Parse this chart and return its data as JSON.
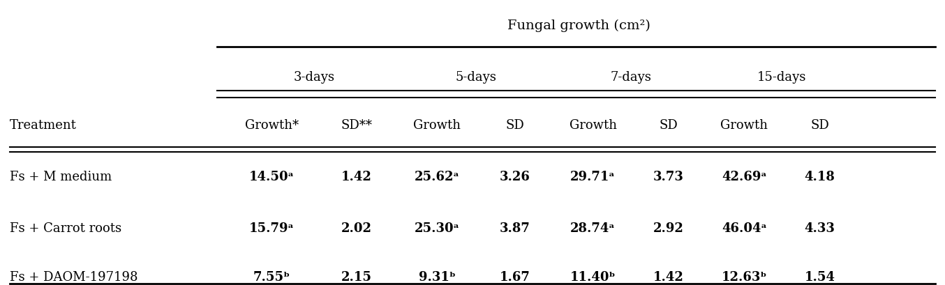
{
  "title": "Fungal growth (cm²)",
  "col_groups": [
    "3-days",
    "5-days",
    "7-days",
    "15-days"
  ],
  "col_headers": [
    "Growth*",
    "SD**",
    "Growth",
    "SD",
    "Growth",
    "SD",
    "Growth",
    "SD"
  ],
  "row_label_header": "Treatment",
  "rows": [
    {
      "label": "Fs + M medium",
      "values": [
        "14.50ᵃ",
        "1.42",
        "25.62ᵃ",
        "3.26",
        "29.71ᵃ",
        "3.73",
        "42.69ᵃ",
        "4.18"
      ],
      "bold_cols": [
        0,
        1,
        2,
        3,
        4,
        5,
        6,
        7
      ]
    },
    {
      "label": "Fs + Carrot roots",
      "values": [
        "15.79ᵃ",
        "2.02",
        "25.30ᵃ",
        "3.87",
        "28.74ᵃ",
        "2.92",
        "46.04ᵃ",
        "4.33"
      ],
      "bold_cols": [
        0,
        1,
        2,
        3,
        4,
        5,
        6,
        7
      ]
    },
    {
      "label": "Fs + DAOM-197198",
      "values": [
        "7.55ᵇ",
        "2.15",
        "9.31ᵇ",
        "1.67",
        "11.40ᵇ",
        "1.42",
        "12.63ᵇ",
        "1.54"
      ],
      "bold_cols": [
        0,
        1,
        2,
        3,
        4,
        5,
        6,
        7
      ]
    }
  ],
  "bg_color": "#ffffff",
  "text_color": "#000000",
  "font_size": 13,
  "header_font_size": 13,
  "title_font_size": 14
}
